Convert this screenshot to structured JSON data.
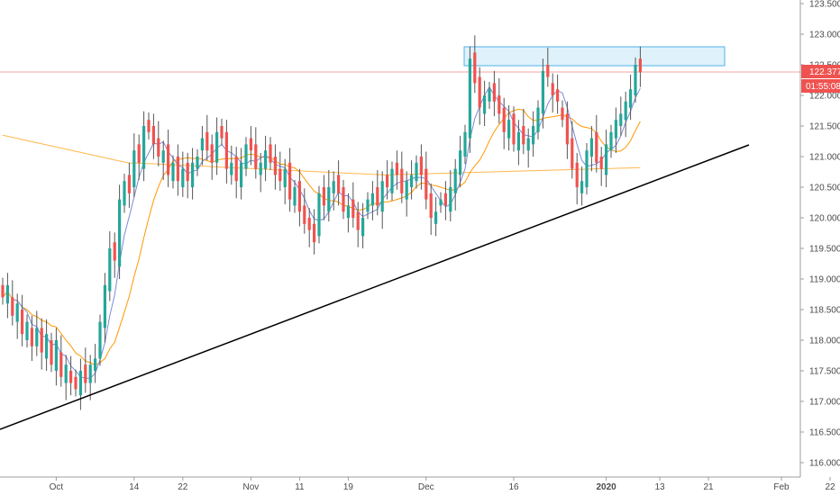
{
  "chart_data": {
    "type": "candlestick",
    "instrument_price_axis": {
      "ticks": [
        "123.500",
        "123.000",
        "122.500",
        "122.000",
        "121.500",
        "121.000",
        "120.500",
        "120.000",
        "119.500",
        "119.000",
        "118.500",
        "118.000",
        "117.500",
        "117.000",
        "116.500",
        "116.000"
      ],
      "ylim": [
        115.8,
        123.6
      ]
    },
    "time_axis": {
      "labels": [
        {
          "text": "Oct",
          "bar": 11,
          "bold": false
        },
        {
          "text": "14",
          "bar": 27,
          "bold": false
        },
        {
          "text": "22",
          "bar": 37,
          "bold": false
        },
        {
          "text": "Nov",
          "bar": 51,
          "bold": false
        },
        {
          "text": "11",
          "bar": 61,
          "bold": false
        },
        {
          "text": "19",
          "bar": 71,
          "bold": false
        },
        {
          "text": "Dec",
          "bar": 87,
          "bold": false
        },
        {
          "text": "16",
          "bar": 105,
          "bold": false
        },
        {
          "text": "2020",
          "bar": 124,
          "bold": true
        },
        {
          "text": "13",
          "bar": 135,
          "bold": false
        },
        {
          "text": "21",
          "bar": 145,
          "bold": false
        },
        {
          "text": "Feb",
          "bar": 160,
          "bold": false
        },
        {
          "text": "22",
          "bar": 170,
          "bold": false
        }
      ]
    },
    "last_price": {
      "value": "122.377",
      "countdown": "01:55:08",
      "value_num": 122.377
    },
    "colors": {
      "up": "#26a69a",
      "down": "#ef5350",
      "wick": "#555555",
      "ma_fast": "#7b8bd6",
      "ma_mid": "#ff9800",
      "ma_slow": "#ffb74d",
      "resistance_fill": "#dff2fb",
      "resistance_stroke": "#4fb3e8",
      "trendline": "#000000",
      "price_tag": "#ef5350"
    },
    "candles_close": [
      118.7,
      118.9,
      118.4,
      118.6,
      118.1,
      118.3,
      117.9,
      118.2,
      117.8,
      118.1,
      117.6,
      118.0,
      117.4,
      117.6,
      117.3,
      117.2,
      117.5,
      117.3,
      117.6,
      117.7,
      118.3,
      118.9,
      119.5,
      119.3,
      120.3,
      120.6,
      120.4,
      121.1,
      120.9,
      121.5,
      121.4,
      121.2,
      121.0,
      121.1,
      120.7,
      120.9,
      120.6,
      120.8,
      120.6,
      120.9,
      121.0,
      121.3,
      121.1,
      120.9,
      121.4,
      121.3,
      120.8,
      120.9,
      120.6,
      120.9,
      121.2,
      121.1,
      120.8,
      120.9,
      121.1,
      120.9,
      120.7,
      120.6,
      120.8,
      120.3,
      120.5,
      120.1,
      119.9,
      119.8,
      119.6,
      120.4,
      120.2,
      120.5,
      120.6,
      120.4,
      120.1,
      120.2,
      120.0,
      119.8,
      120.0,
      120.3,
      120.4,
      120.2,
      120.6,
      120.5,
      120.8,
      120.7,
      120.4,
      120.6,
      120.7,
      120.9,
      120.7,
      120.3,
      120.0,
      120.1,
      120.3,
      120.2,
      120.5,
      120.8,
      121.1,
      121.4,
      122.6,
      122.2,
      121.8,
      122.0,
      122.1,
      121.9,
      121.7,
      121.4,
      121.6,
      121.2,
      121.4,
      121.2,
      121.3,
      121.5,
      121.8,
      122.4,
      122.3,
      122.0,
      121.9,
      121.6,
      121.2,
      120.8,
      120.5,
      120.6,
      121.1,
      121.3,
      120.9,
      120.8,
      121.2,
      121.4,
      121.6,
      121.7,
      121.9,
      122.1,
      122.5,
      122.377
    ],
    "candles_open": [
      118.9,
      118.6,
      118.7,
      118.3,
      118.5,
      118.0,
      118.2,
      117.9,
      118.2,
      117.7,
      118.0,
      117.5,
      117.8,
      117.3,
      117.5,
      117.4,
      117.1,
      117.6,
      117.3,
      117.5,
      117.7,
      118.2,
      118.8,
      119.6,
      119.2,
      120.2,
      120.7,
      120.5,
      121.2,
      120.8,
      121.6,
      121.5,
      121.3,
      120.9,
      121.2,
      120.6,
      121.0,
      120.5,
      120.9,
      120.5,
      120.8,
      121.1,
      121.4,
      121.2,
      120.9,
      121.5,
      121.4,
      120.7,
      121.0,
      120.5,
      120.8,
      121.3,
      121.2,
      120.7,
      120.8,
      121.2,
      121.0,
      120.8,
      120.5,
      120.9,
      120.2,
      120.6,
      120.2,
      120.0,
      119.9,
      119.7,
      120.5,
      120.1,
      120.4,
      120.7,
      120.5,
      120.0,
      120.3,
      120.1,
      119.7,
      120.1,
      120.2,
      120.5,
      120.1,
      120.7,
      120.4,
      120.9,
      120.8,
      120.3,
      120.5,
      120.6,
      121.0,
      120.8,
      120.4,
      119.9,
      120.2,
      120.4,
      120.1,
      120.4,
      120.7,
      121.0,
      121.3,
      122.7,
      122.3,
      121.7,
      121.9,
      122.2,
      122.0,
      121.8,
      121.3,
      121.7,
      121.1,
      121.5,
      121.1,
      121.2,
      121.4,
      121.7,
      122.5,
      122.2,
      122.1,
      121.8,
      121.7,
      121.3,
      120.9,
      120.4,
      120.5,
      121.0,
      121.4,
      121.0,
      120.7,
      121.1,
      121.3,
      121.5,
      121.6,
      121.8,
      122.0,
      122.6
    ]
  }
}
